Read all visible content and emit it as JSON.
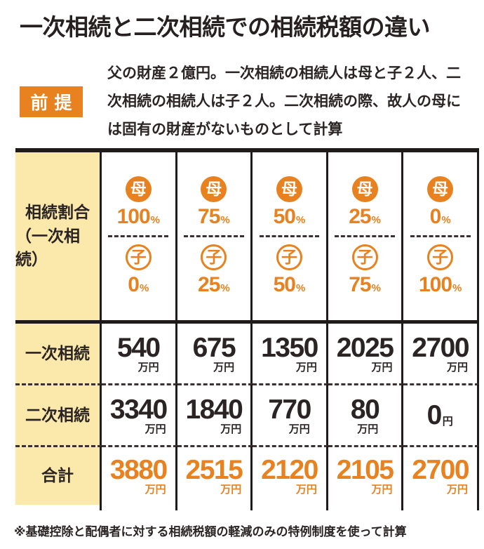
{
  "title": "一次相続と二次相続での相続税額の違い",
  "premise": {
    "label": "前提",
    "text": "父の財産２億円。一次相続の相続人は母と子２人、二次相続の相続人は子２人。二次相続の際、故人の母には固有の財産がないものとして計算"
  },
  "table": {
    "ratio_header": {
      "line1": "相続割合",
      "line2": "（一次相続）"
    },
    "mother_label": "母",
    "child_label": "子",
    "percent_sign": "%",
    "columns": [
      {
        "mother": "100",
        "child": "0"
      },
      {
        "mother": "75",
        "child": "25"
      },
      {
        "mother": "50",
        "child": "50"
      },
      {
        "mother": "25",
        "child": "75"
      },
      {
        "mother": "0",
        "child": "100"
      }
    ],
    "rows": [
      {
        "label": "一次相続",
        "values": [
          {
            "num": "540",
            "unit": "万円"
          },
          {
            "num": "675",
            "unit": "万円"
          },
          {
            "num": "1350",
            "unit": "万円"
          },
          {
            "num": "2025",
            "unit": "万円"
          },
          {
            "num": "2700",
            "unit": "万円"
          }
        ]
      },
      {
        "label": "二次相続",
        "values": [
          {
            "num": "3340",
            "unit": "万円"
          },
          {
            "num": "1840",
            "unit": "万円"
          },
          {
            "num": "770",
            "unit": "万円"
          },
          {
            "num": "80",
            "unit": "万円"
          },
          {
            "num": "0",
            "unit": "円"
          }
        ]
      },
      {
        "label": "合計",
        "values": [
          {
            "num": "3880",
            "unit": "万円"
          },
          {
            "num": "2515",
            "unit": "万円"
          },
          {
            "num": "2120",
            "unit": "万円"
          },
          {
            "num": "2105",
            "unit": "万円"
          },
          {
            "num": "2700",
            "unit": "万円"
          }
        ]
      }
    ]
  },
  "footnote": "※基礎控除と配偶者に対する相続税額の軽減のみの特例制度を使って計算",
  "colors": {
    "accent_orange": "#e8811f",
    "cream": "#fbe8ab",
    "ink": "#2b2424"
  },
  "chart_data": {
    "type": "table",
    "title": "一次相続と二次相続での相続税額の違い",
    "premise": "父の財産２億円。一次相続の相続人は母と子２人、二次相続の相続人は子２人。二次相続の際、故人の母には固有の財産がないものとして計算",
    "column_shares": {
      "mother_pct": [
        100,
        75,
        50,
        25,
        0
      ],
      "child_pct": [
        0,
        25,
        50,
        75,
        100
      ]
    },
    "rows": [
      {
        "label": "一次相続",
        "values_man_yen": [
          540,
          675,
          1350,
          2025,
          2700
        ]
      },
      {
        "label": "二次相続",
        "values_man_yen": [
          3340,
          1840,
          770,
          80,
          0
        ]
      },
      {
        "label": "合計",
        "values_man_yen": [
          3880,
          2515,
          2120,
          2105,
          2700
        ]
      }
    ],
    "unit": "万円",
    "footnote": "※基礎控除と配偶者に対する相続税額の軽減のみの特例制度を使って計算"
  }
}
